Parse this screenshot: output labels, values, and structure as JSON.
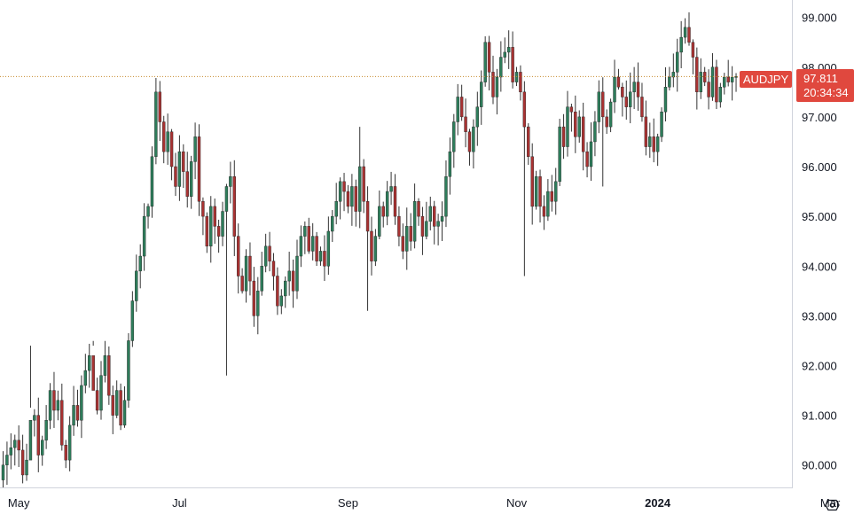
{
  "chart_data": {
    "type": "candlestick",
    "symbol": "AUDJPY",
    "last_price": "97.811",
    "countdown": "20:34:34",
    "ylim": [
      89.55,
      99.35
    ],
    "y_ticks": [
      "99.000",
      "98.000",
      "97.000",
      "96.000",
      "95.000",
      "94.000",
      "93.000",
      "92.000",
      "91.000",
      "90.000"
    ],
    "x_ticks": [
      {
        "label": "May",
        "index": 4,
        "bold": false
      },
      {
        "label": "Jul",
        "index": 45,
        "bold": false
      },
      {
        "label": "Sep",
        "index": 88,
        "bold": false
      },
      {
        "label": "Nov",
        "index": 131,
        "bold": false
      },
      {
        "label": "2024",
        "index": 167,
        "bold": true
      },
      {
        "label": "Mar",
        "index": 211,
        "bold": false
      }
    ],
    "colors": {
      "up": "#2e7d5b",
      "down": "#a83232",
      "tag": "#e0483e",
      "price_line": "#c58a2b",
      "axis": "#131722",
      "border": "#d1d4dc"
    },
    "closes": [
      90.0,
      90.2,
      90.35,
      90.5,
      90.3,
      89.8,
      90.1,
      90.9,
      91.0,
      90.2,
      90.5,
      90.9,
      91.5,
      91.1,
      91.3,
      90.4,
      90.1,
      90.8,
      91.2,
      90.9,
      91.6,
      91.9,
      92.2,
      91.5,
      91.1,
      91.8,
      92.2,
      91.4,
      91.0,
      91.5,
      90.8,
      91.3,
      92.5,
      93.3,
      93.9,
      94.2,
      95.0,
      95.2,
      96.2,
      97.5,
      96.9,
      96.3,
      96.7,
      96.0,
      95.6,
      96.3,
      95.9,
      95.4,
      96.1,
      96.6,
      95.3,
      95.0,
      94.4,
      95.2,
      94.8,
      94.6,
      95.1,
      95.6,
      95.8,
      94.6,
      93.8,
      93.5,
      94.2,
      93.7,
      93.0,
      93.5,
      94.0,
      94.4,
      94.1,
      93.8,
      93.2,
      93.4,
      93.7,
      93.9,
      93.5,
      94.2,
      94.6,
      94.8,
      94.3,
      94.6,
      94.1,
      94.3,
      94.0,
      94.7,
      95.0,
      95.3,
      95.7,
      95.5,
      95.2,
      95.6,
      95.1,
      96.0,
      95.3,
      94.7,
      94.1,
      94.6,
      95.2,
      95.0,
      95.5,
      95.6,
      95.0,
      94.6,
      94.3,
      94.8,
      94.5,
      95.3,
      95.0,
      94.6,
      94.9,
      95.2,
      94.8,
      94.9,
      95.0,
      95.8,
      96.3,
      96.9,
      97.4,
      97.0,
      96.7,
      96.3,
      96.8,
      97.2,
      97.7,
      98.5,
      97.9,
      97.4,
      97.8,
      98.2,
      98.3,
      98.4,
      97.7,
      97.9,
      97.5,
      96.8,
      96.2,
      95.2,
      95.8,
      95.2,
      95.0,
      95.5,
      95.3,
      95.7,
      96.8,
      96.4,
      97.2,
      97.1,
      96.6,
      97.0,
      96.3,
      96.0,
      96.5,
      96.9,
      97.5,
      97.0,
      96.8,
      97.3,
      97.8,
      97.6,
      97.4,
      97.2,
      97.5,
      97.7,
      97.4,
      97.0,
      96.4,
      96.6,
      96.3,
      96.6,
      97.1,
      97.6,
      97.8,
      97.9,
      98.3,
      98.6,
      98.8,
      98.5,
      98.2,
      97.5,
      97.9,
      97.7,
      97.4,
      98.0,
      97.3,
      97.6,
      97.8,
      97.7,
      97.8,
      97.811
    ]
  }
}
